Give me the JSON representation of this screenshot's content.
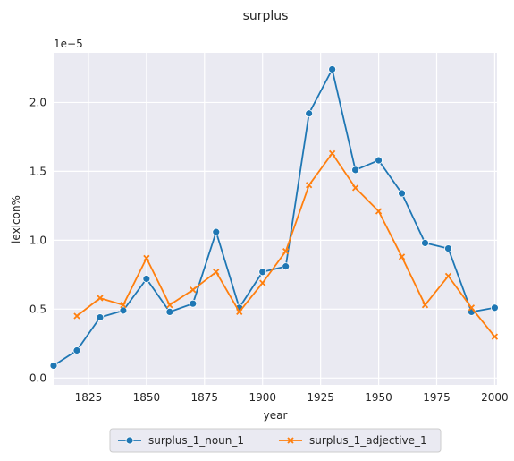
{
  "chart_data": {
    "type": "line",
    "title": "surplus",
    "xlabel": "year",
    "ylabel": "lexicon%",
    "y_scale_note": "1e−5",
    "xlim": [
      1810,
      2001
    ],
    "ylim": [
      -0.05,
      2.36
    ],
    "x_ticks": [
      1825,
      1850,
      1875,
      1900,
      1925,
      1950,
      1975,
      2000
    ],
    "y_ticks": [
      0.0,
      0.5,
      1.0,
      1.5,
      2.0
    ],
    "y_tick_labels": [
      "0.0",
      "0.5",
      "1.0",
      "1.5",
      "2.0"
    ],
    "grid": true,
    "legend_position": "below",
    "colors": {
      "noun": "#1f77b4",
      "adjective": "#ff7f0e",
      "plot_bg": "#eaeaf2",
      "grid": "#ffffff"
    },
    "series": [
      {
        "name": "surplus_1_noun_1",
        "marker": "circle",
        "color": "#1f77b4",
        "x": [
          1810,
          1820,
          1830,
          1840,
          1850,
          1860,
          1870,
          1880,
          1890,
          1900,
          1910,
          1920,
          1930,
          1940,
          1950,
          1960,
          1970,
          1980,
          1990,
          2000
        ],
        "y": [
          0.09,
          0.2,
          0.44,
          0.49,
          0.72,
          0.48,
          0.54,
          1.06,
          0.51,
          0.77,
          0.81,
          1.92,
          2.24,
          1.51,
          1.58,
          1.34,
          0.98,
          0.94,
          0.48,
          0.51
        ]
      },
      {
        "name": "surplus_1_adjective_1",
        "marker": "x",
        "color": "#ff7f0e",
        "x": [
          1820,
          1830,
          1840,
          1850,
          1860,
          1870,
          1880,
          1890,
          1900,
          1910,
          1920,
          1930,
          1940,
          1950,
          1960,
          1970,
          1980,
          1990,
          2000
        ],
        "y": [
          0.45,
          0.58,
          0.53,
          0.87,
          0.53,
          0.64,
          0.77,
          0.48,
          0.69,
          0.92,
          1.4,
          1.63,
          1.38,
          1.21,
          0.88,
          0.53,
          0.74,
          0.51,
          0.3
        ]
      }
    ]
  }
}
